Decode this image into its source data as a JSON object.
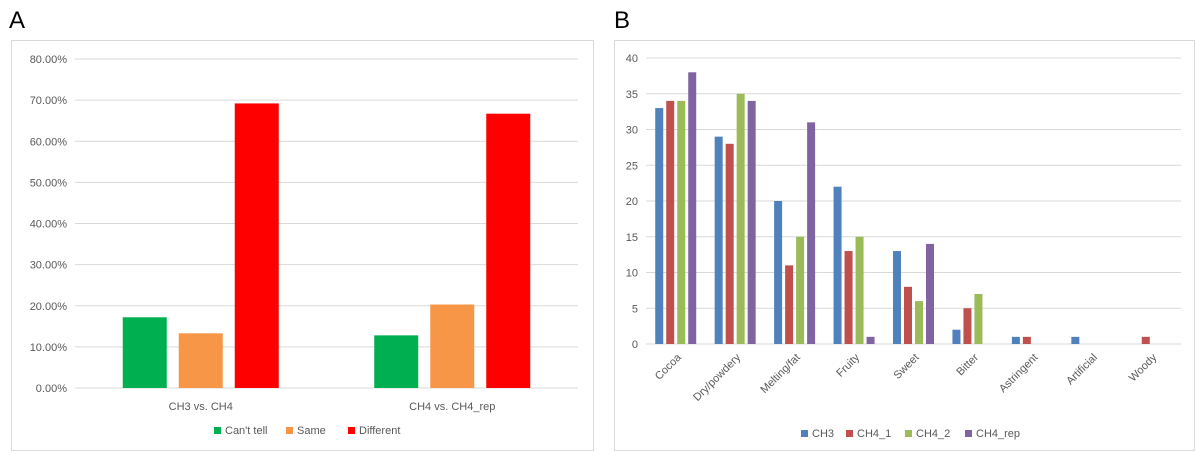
{
  "panels": {
    "a_label": "A",
    "b_label": "B"
  },
  "chart_data": [
    {
      "type": "bar",
      "categories": [
        "CH3 vs. CH4",
        "CH4 vs. CH4_rep"
      ],
      "series": [
        {
          "name": "Can't tell",
          "color": "#00b050",
          "values": [
            0.172,
            0.128
          ]
        },
        {
          "name": "Same",
          "color": "#f79646",
          "values": [
            0.133,
            0.203
          ]
        },
        {
          "name": "Different",
          "color": "#ff0000",
          "values": [
            0.692,
            0.667
          ]
        }
      ],
      "ylim": [
        0,
        0.8
      ],
      "yticks": [
        0,
        0.1,
        0.2,
        0.3,
        0.4,
        0.5,
        0.6,
        0.7,
        0.8
      ],
      "ytick_labels": [
        "0.00%",
        "10.00%",
        "20.00%",
        "30.00%",
        "40.00%",
        "50.00%",
        "60.00%",
        "70.00%",
        "80.00%"
      ],
      "grid": true,
      "legend": "bottom"
    },
    {
      "type": "bar",
      "categories": [
        "Cocoa",
        "Dry/powdery",
        "Melting/fat",
        "Fruity",
        "Sweet",
        "Bitter",
        "Astringent",
        "Artificial",
        "Woody"
      ],
      "series": [
        {
          "name": "CH3",
          "color": "#4f81bd",
          "values": [
            33,
            29,
            20,
            22,
            13,
            2,
            1,
            1,
            0
          ]
        },
        {
          "name": "CH4_1",
          "color": "#c0504d",
          "values": [
            34,
            28,
            11,
            13,
            8,
            5,
            1,
            0,
            1
          ]
        },
        {
          "name": "CH4_2",
          "color": "#9bbb59",
          "values": [
            34,
            35,
            15,
            15,
            6,
            7,
            0,
            0,
            0
          ]
        },
        {
          "name": "CH4_rep",
          "color": "#8064a2",
          "values": [
            38,
            34,
            31,
            1,
            14,
            0,
            0,
            0,
            0
          ]
        }
      ],
      "ylim": [
        0,
        40
      ],
      "yticks": [
        0,
        5,
        10,
        15,
        20,
        25,
        30,
        35,
        40
      ],
      "ytick_labels": [
        "0",
        "5",
        "10",
        "15",
        "20",
        "25",
        "30",
        "35",
        "40"
      ],
      "grid": true,
      "legend": "bottom"
    }
  ]
}
